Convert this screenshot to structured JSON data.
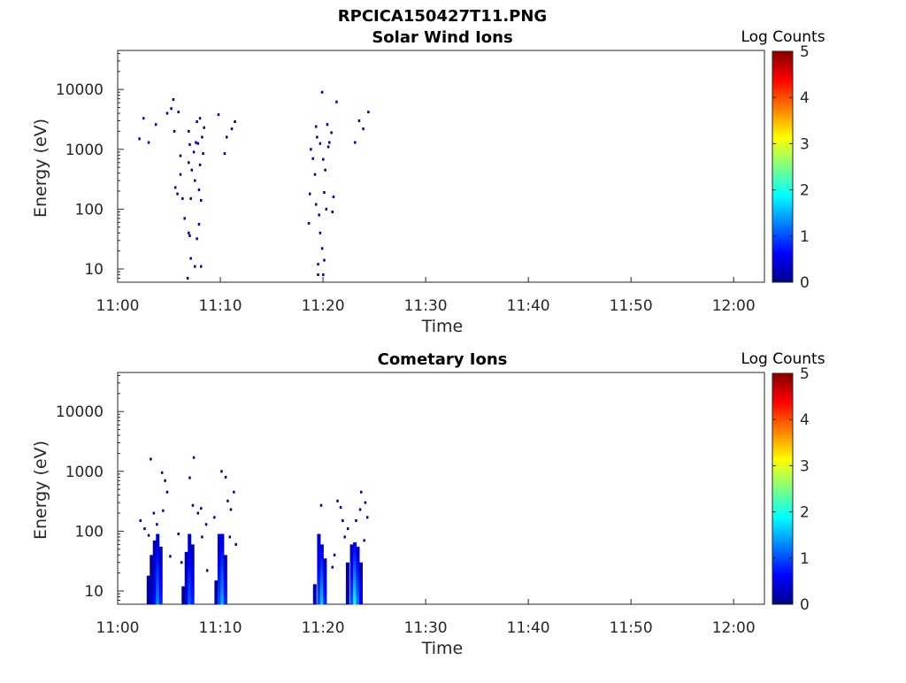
{
  "figure_title": "RPCICA150427T11.PNG",
  "chart_data": [
    {
      "type": "heatmap",
      "title": "Solar Wind Ions",
      "xlabel": "Time",
      "ylabel": "Energy (eV)",
      "x_ticks": [
        "11:00",
        "11:10",
        "11:20",
        "11:30",
        "11:40",
        "11:50",
        "12:00"
      ],
      "y_ticks": [
        "10",
        "100",
        "1000",
        "10000"
      ],
      "y_scale": "log",
      "ylim": [
        6,
        45000
      ],
      "xlim": [
        "11:00",
        "12:03"
      ],
      "colorbar": {
        "title": "Log Counts",
        "ticks": [
          "0",
          "1",
          "2",
          "3",
          "4",
          "5"
        ],
        "range": [
          0,
          5
        ],
        "colormap": "jet"
      },
      "pixels": [
        {
          "t": 2.1,
          "e": 1500,
          "v": 0.1
        },
        {
          "t": 2.5,
          "e": 3300,
          "v": 0.1
        },
        {
          "t": 3.0,
          "e": 1300,
          "v": 0.1
        },
        {
          "t": 3.7,
          "e": 2600,
          "v": 0.1
        },
        {
          "t": 4.8,
          "e": 4000,
          "v": 0.1
        },
        {
          "t": 5.2,
          "e": 4800,
          "v": 0.1
        },
        {
          "t": 5.4,
          "e": 6800,
          "v": 0.1
        },
        {
          "t": 5.9,
          "e": 4200,
          "v": 0.1
        },
        {
          "t": 5.5,
          "e": 2000,
          "v": 0.1
        },
        {
          "t": 6.1,
          "e": 780,
          "v": 0.1
        },
        {
          "t": 6.1,
          "e": 380,
          "v": 0.1
        },
        {
          "t": 5.6,
          "e": 230,
          "v": 0.1
        },
        {
          "t": 5.8,
          "e": 180,
          "v": 0.1
        },
        {
          "t": 6.3,
          "e": 150,
          "v": 0.1
        },
        {
          "t": 6.5,
          "e": 70,
          "v": 0.1
        },
        {
          "t": 6.9,
          "e": 2000,
          "v": 0.1
        },
        {
          "t": 7.0,
          "e": 1200,
          "v": 0.1
        },
        {
          "t": 6.9,
          "e": 600,
          "v": 0.1
        },
        {
          "t": 7.2,
          "e": 450,
          "v": 0.1
        },
        {
          "t": 7.4,
          "e": 900,
          "v": 0.1
        },
        {
          "t": 7.6,
          "e": 1300,
          "v": 0.1
        },
        {
          "t": 7.8,
          "e": 1250,
          "v": 0.1
        },
        {
          "t": 7.5,
          "e": 300,
          "v": 0.1
        },
        {
          "t": 7.1,
          "e": 150,
          "v": 0.1
        },
        {
          "t": 7.7,
          "e": 2900,
          "v": 0.1
        },
        {
          "t": 8.0,
          "e": 3300,
          "v": 0.1
        },
        {
          "t": 8.2,
          "e": 1600,
          "v": 0.1
        },
        {
          "t": 8.3,
          "e": 850,
          "v": 0.1
        },
        {
          "t": 8.0,
          "e": 550,
          "v": 0.1
        },
        {
          "t": 7.9,
          "e": 210,
          "v": 0.1
        },
        {
          "t": 8.1,
          "e": 140,
          "v": 0.1
        },
        {
          "t": 8.4,
          "e": 2300,
          "v": 0.1
        },
        {
          "t": 7.9,
          "e": 56,
          "v": 0.1
        },
        {
          "t": 6.9,
          "e": 40,
          "v": 0.1
        },
        {
          "t": 7.0,
          "e": 36,
          "v": 0.1
        },
        {
          "t": 7.7,
          "e": 32,
          "v": 0.1
        },
        {
          "t": 7.1,
          "e": 15,
          "v": 0.1
        },
        {
          "t": 7.5,
          "e": 11,
          "v": 0.1
        },
        {
          "t": 8.1,
          "e": 11,
          "v": 0.1
        },
        {
          "t": 6.8,
          "e": 7,
          "v": 0.1
        },
        {
          "t": 9.8,
          "e": 3800,
          "v": 0.1
        },
        {
          "t": 10.4,
          "e": 850,
          "v": 0.1
        },
        {
          "t": 10.6,
          "e": 1600,
          "v": 0.1
        },
        {
          "t": 11.1,
          "e": 2200,
          "v": 0.1
        },
        {
          "t": 11.4,
          "e": 2900,
          "v": 0.1
        },
        {
          "t": 18.6,
          "e": 58,
          "v": 0.1
        },
        {
          "t": 18.7,
          "e": 180,
          "v": 0.1
        },
        {
          "t": 18.8,
          "e": 1000,
          "v": 0.1
        },
        {
          "t": 19.0,
          "e": 700,
          "v": 0.1
        },
        {
          "t": 19.3,
          "e": 2400,
          "v": 0.1
        },
        {
          "t": 19.4,
          "e": 1600,
          "v": 0.1
        },
        {
          "t": 19.2,
          "e": 380,
          "v": 0.1
        },
        {
          "t": 19.3,
          "e": 120,
          "v": 0.1
        },
        {
          "t": 19.6,
          "e": 80,
          "v": 0.1
        },
        {
          "t": 19.7,
          "e": 1250,
          "v": 0.1
        },
        {
          "t": 19.9,
          "e": 9000,
          "v": 0.1
        },
        {
          "t": 20.0,
          "e": 680,
          "v": 0.1
        },
        {
          "t": 20.2,
          "e": 450,
          "v": 0.1
        },
        {
          "t": 20.4,
          "e": 2600,
          "v": 0.1
        },
        {
          "t": 20.5,
          "e": 1100,
          "v": 0.1
        },
        {
          "t": 20.1,
          "e": 190,
          "v": 0.1
        },
        {
          "t": 20.3,
          "e": 100,
          "v": 0.1
        },
        {
          "t": 20.6,
          "e": 1300,
          "v": 0.1
        },
        {
          "t": 20.8,
          "e": 1900,
          "v": 0.1
        },
        {
          "t": 21.0,
          "e": 160,
          "v": 0.1
        },
        {
          "t": 20.9,
          "e": 90,
          "v": 0.1
        },
        {
          "t": 21.3,
          "e": 6200,
          "v": 0.1
        },
        {
          "t": 19.7,
          "e": 40,
          "v": 0.1
        },
        {
          "t": 19.9,
          "e": 22,
          "v": 0.1
        },
        {
          "t": 20.1,
          "e": 14,
          "v": 0.1
        },
        {
          "t": 19.5,
          "e": 12,
          "v": 0.1
        },
        {
          "t": 20.0,
          "e": 8,
          "v": 0.1
        },
        {
          "t": 19.5,
          "e": 8,
          "v": 0.1
        },
        {
          "t": 23.1,
          "e": 1300,
          "v": 0.1
        },
        {
          "t": 23.5,
          "e": 3000,
          "v": 0.1
        },
        {
          "t": 23.9,
          "e": 2200,
          "v": 0.1
        },
        {
          "t": 24.4,
          "e": 4200,
          "v": 0.1
        }
      ]
    },
    {
      "type": "heatmap",
      "title": "Cometary Ions",
      "xlabel": "Time",
      "ylabel": "Energy (eV)",
      "x_ticks": [
        "11:00",
        "11:10",
        "11:20",
        "11:30",
        "11:40",
        "11:50",
        "12:00"
      ],
      "y_ticks": [
        "10",
        "100",
        "1000",
        "10000"
      ],
      "y_scale": "log",
      "ylim": [
        6,
        45000
      ],
      "xlim": [
        "11:00",
        "12:03"
      ],
      "colorbar": {
        "title": "Log Counts",
        "ticks": [
          "0",
          "1",
          "2",
          "3",
          "4",
          "5"
        ],
        "range": [
          0,
          5
        ],
        "colormap": "jet"
      },
      "columns": [
        {
          "t": 3.0,
          "emin": 6,
          "emax": 18,
          "v": 0.2
        },
        {
          "t": 3.3,
          "emin": 6,
          "emax": 40,
          "v": 0.3
        },
        {
          "t": 3.6,
          "emin": 6,
          "emax": 70,
          "v": 0.7
        },
        {
          "t": 3.9,
          "emin": 6,
          "emax": 90,
          "v": 1.3
        },
        {
          "t": 4.2,
          "emin": 6,
          "emax": 55,
          "v": 0.8
        },
        {
          "t": 6.4,
          "emin": 6,
          "emax": 12,
          "v": 0.2
        },
        {
          "t": 6.7,
          "emin": 6,
          "emax": 45,
          "v": 0.5
        },
        {
          "t": 7.0,
          "emin": 6,
          "emax": 90,
          "v": 1.1
        },
        {
          "t": 7.3,
          "emin": 6,
          "emax": 60,
          "v": 0.8
        },
        {
          "t": 9.6,
          "emin": 6,
          "emax": 15,
          "v": 0.3
        },
        {
          "t": 9.9,
          "emin": 6,
          "emax": 90,
          "v": 1.0
        },
        {
          "t": 10.2,
          "emin": 6,
          "emax": 90,
          "v": 1.5
        },
        {
          "t": 10.5,
          "emin": 6,
          "emax": 40,
          "v": 0.8
        },
        {
          "t": 19.2,
          "emin": 6,
          "emax": 13,
          "v": 0.3
        },
        {
          "t": 19.6,
          "emin": 6,
          "emax": 90,
          "v": 1.0
        },
        {
          "t": 19.9,
          "emin": 6,
          "emax": 60,
          "v": 1.6
        },
        {
          "t": 20.2,
          "emin": 6,
          "emax": 35,
          "v": 0.8
        },
        {
          "t": 22.4,
          "emin": 6,
          "emax": 30,
          "v": 0.4
        },
        {
          "t": 22.8,
          "emin": 6,
          "emax": 60,
          "v": 1.0
        },
        {
          "t": 23.1,
          "emin": 6,
          "emax": 65,
          "v": 1.9
        },
        {
          "t": 23.4,
          "emin": 6,
          "emax": 55,
          "v": 1.2
        },
        {
          "t": 23.7,
          "emin": 6,
          "emax": 30,
          "v": 0.6
        }
      ],
      "pixels": [
        {
          "t": 2.2,
          "e": 150,
          "v": 0.1
        },
        {
          "t": 2.6,
          "e": 110,
          "v": 0.1
        },
        {
          "t": 3.0,
          "e": 85,
          "v": 0.1
        },
        {
          "t": 3.2,
          "e": 1600,
          "v": 0.1
        },
        {
          "t": 3.5,
          "e": 200,
          "v": 0.1
        },
        {
          "t": 3.8,
          "e": 130,
          "v": 0.1
        },
        {
          "t": 4.3,
          "e": 950,
          "v": 0.1
        },
        {
          "t": 4.4,
          "e": 220,
          "v": 0.1
        },
        {
          "t": 4.6,
          "e": 700,
          "v": 0.1
        },
        {
          "t": 4.8,
          "e": 450,
          "v": 0.1
        },
        {
          "t": 5.1,
          "e": 38,
          "v": 0.1
        },
        {
          "t": 5.9,
          "e": 90,
          "v": 0.1
        },
        {
          "t": 6.2,
          "e": 30,
          "v": 0.1
        },
        {
          "t": 7.0,
          "e": 780,
          "v": 0.1
        },
        {
          "t": 7.4,
          "e": 1700,
          "v": 0.1
        },
        {
          "t": 7.3,
          "e": 270,
          "v": 0.1
        },
        {
          "t": 7.8,
          "e": 200,
          "v": 0.1
        },
        {
          "t": 8.1,
          "e": 240,
          "v": 0.1
        },
        {
          "t": 8.2,
          "e": 80,
          "v": 0.1
        },
        {
          "t": 8.6,
          "e": 130,
          "v": 0.1
        },
        {
          "t": 8.7,
          "e": 22,
          "v": 0.1
        },
        {
          "t": 9.4,
          "e": 170,
          "v": 0.1
        },
        {
          "t": 10.1,
          "e": 1000,
          "v": 0.1
        },
        {
          "t": 10.5,
          "e": 800,
          "v": 0.1
        },
        {
          "t": 10.7,
          "e": 320,
          "v": 0.1
        },
        {
          "t": 11.0,
          "e": 230,
          "v": 0.1
        },
        {
          "t": 11.3,
          "e": 450,
          "v": 0.1
        },
        {
          "t": 11.5,
          "e": 60,
          "v": 0.1
        },
        {
          "t": 10.9,
          "e": 80,
          "v": 0.1
        },
        {
          "t": 19.8,
          "e": 270,
          "v": 0.1
        },
        {
          "t": 21.4,
          "e": 320,
          "v": 0.1
        },
        {
          "t": 21.7,
          "e": 250,
          "v": 0.1
        },
        {
          "t": 21.9,
          "e": 150,
          "v": 0.1
        },
        {
          "t": 22.1,
          "e": 80,
          "v": 0.1
        },
        {
          "t": 22.4,
          "e": 110,
          "v": 0.1
        },
        {
          "t": 23.2,
          "e": 150,
          "v": 0.1
        },
        {
          "t": 23.6,
          "e": 230,
          "v": 0.1
        },
        {
          "t": 23.7,
          "e": 450,
          "v": 0.1
        },
        {
          "t": 24.1,
          "e": 300,
          "v": 0.1
        },
        {
          "t": 24.3,
          "e": 170,
          "v": 0.1
        },
        {
          "t": 24.0,
          "e": 70,
          "v": 0.1
        },
        {
          "t": 21.1,
          "e": 40,
          "v": 0.1
        },
        {
          "t": 20.9,
          "e": 25,
          "v": 0.1
        }
      ]
    }
  ]
}
